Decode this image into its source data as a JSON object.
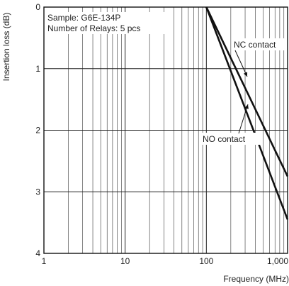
{
  "chart_data": {
    "type": "line",
    "xlabel": "Frequency (MHz)",
    "ylabel": "Insertion loss (dB)",
    "x_scale": "log",
    "xlim": [
      1,
      1000
    ],
    "ylim": [
      0,
      4
    ],
    "y_inverted": true,
    "grid": true,
    "x_tick_labels": [
      "1",
      "10",
      "100",
      "1,000"
    ],
    "y_tick_labels": [
      "0",
      "1",
      "2",
      "3",
      "4"
    ],
    "annotations": [
      "Sample: G6E-134P",
      "Number of Relays: 5 pcs"
    ],
    "series": [
      {
        "name": "NC contact",
        "x": [
          100,
          1000
        ],
        "y": [
          0,
          2.75
        ]
      },
      {
        "name": "NO contact",
        "x": [
          100,
          1000
        ],
        "y": [
          0,
          3.45
        ]
      }
    ]
  }
}
